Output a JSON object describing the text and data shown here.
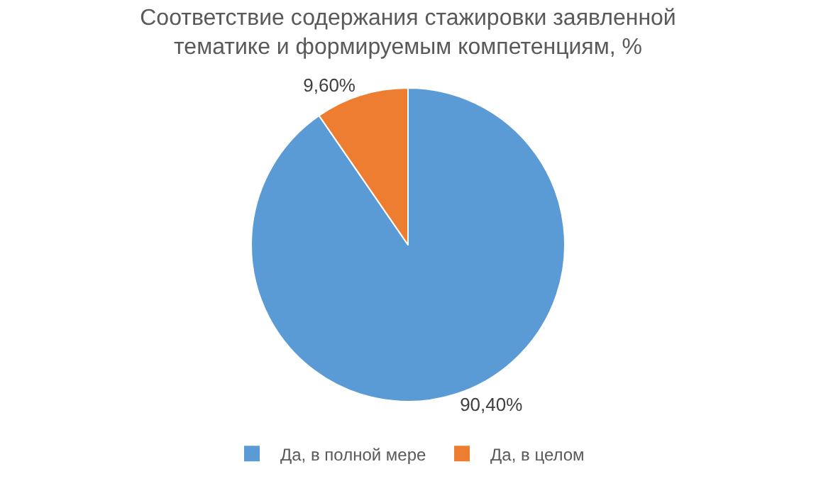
{
  "chart_data": {
    "type": "pie",
    "title": "Соответствие содержания стажировки заявленной\nтематике и формируемым компетенциям, %",
    "categories": [
      "Да, в полной мере",
      "Да, в целом"
    ],
    "values": [
      90.4,
      9.6
    ],
    "value_labels": [
      "90,40%",
      "9,60%"
    ],
    "colors": [
      "#5b9bd5",
      "#ed7d31"
    ],
    "legend": "bottom"
  }
}
